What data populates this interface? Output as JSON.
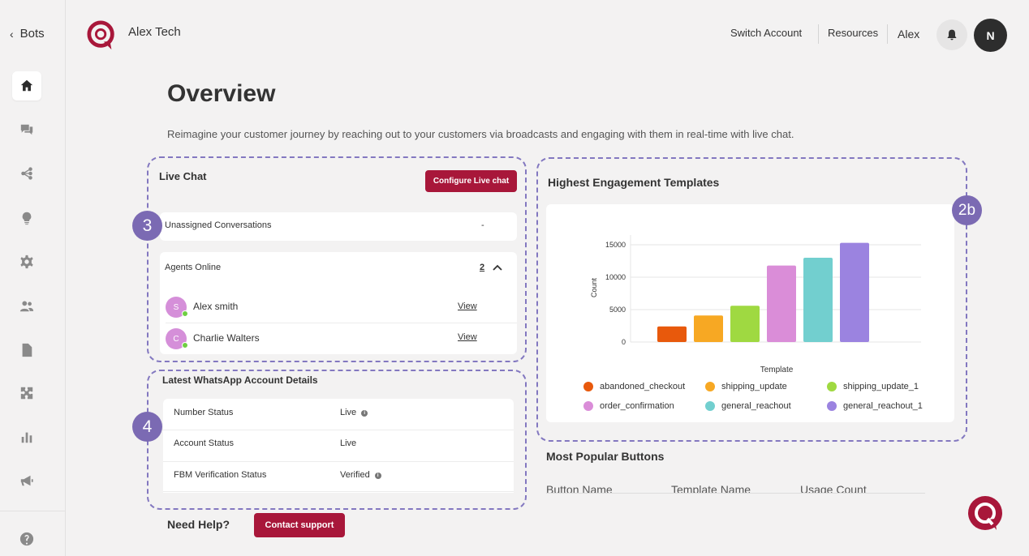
{
  "sidebar": {
    "back_label": "Bots",
    "items": [
      {
        "icon": "home-icon"
      },
      {
        "icon": "chat-icon"
      },
      {
        "icon": "flow-icon"
      },
      {
        "icon": "bulb-icon"
      },
      {
        "icon": "gear-icon"
      },
      {
        "icon": "users-icon"
      },
      {
        "icon": "document-icon"
      },
      {
        "icon": "puzzle-icon"
      },
      {
        "icon": "bar-chart-icon"
      },
      {
        "icon": "megaphone-icon"
      },
      {
        "icon": "help-icon"
      }
    ]
  },
  "header": {
    "brand": "Alex Tech",
    "switch_account": "Switch Account",
    "resources": "Resources",
    "user": "Alex",
    "avatar_initial": "N"
  },
  "page": {
    "title": "Overview",
    "subtitle": "Reimagine your customer journey by reaching out to your customers via broadcasts and engaging with them in real-time with live chat."
  },
  "badges": {
    "live_chat": "3",
    "whatsapp": "4",
    "chart": "2b"
  },
  "live_chat": {
    "title": "Live Chat",
    "configure_button": "Configure Live chat",
    "unassigned_label": "Unassigned Conversations",
    "unassigned_value": "-",
    "agents_online_label": "Agents Online",
    "agents_online_count": "2",
    "agents": [
      {
        "initial": "S",
        "name": "Alex smith",
        "action": "View"
      },
      {
        "initial": "C",
        "name": "Charlie Walters",
        "action": "View"
      }
    ]
  },
  "whatsapp": {
    "title": "Latest WhatsApp Account Details",
    "rows": [
      {
        "label": "Number Status",
        "value": "Live"
      },
      {
        "label": "Account Status",
        "value": "Live"
      },
      {
        "label": "FBM Verification Status",
        "value": "Verified"
      }
    ]
  },
  "templates_section": {
    "title": "Highest Engagement Templates"
  },
  "chart_data": {
    "type": "bar",
    "categories": [
      "abandoned_checkout",
      "shipping_update",
      "shipping_update_1",
      "order_confirmation",
      "general_reachout",
      "general_reachout_1"
    ],
    "values": [
      2400,
      4100,
      5600,
      11800,
      13000,
      15300
    ],
    "colors": [
      "#e8590c",
      "#f7a823",
      "#9fd941",
      "#da8dd8",
      "#72cfcf",
      "#9b83e0"
    ],
    "xlabel": "Template",
    "ylabel": "Count",
    "yticks": [
      0,
      5000,
      10000,
      15000
    ],
    "ylim": [
      0,
      16000
    ],
    "grid": true,
    "legend_position": "bottom"
  },
  "popular_buttons": {
    "title": "Most Popular Buttons",
    "columns": [
      "Button Name",
      "Template Name",
      "Usage Count"
    ]
  },
  "help": {
    "label": "Need Help?",
    "contact_button": "Contact support"
  },
  "colors": {
    "accent": "#a8173a",
    "badge": "#7b6ab3",
    "dashed": "#8378c0"
  }
}
